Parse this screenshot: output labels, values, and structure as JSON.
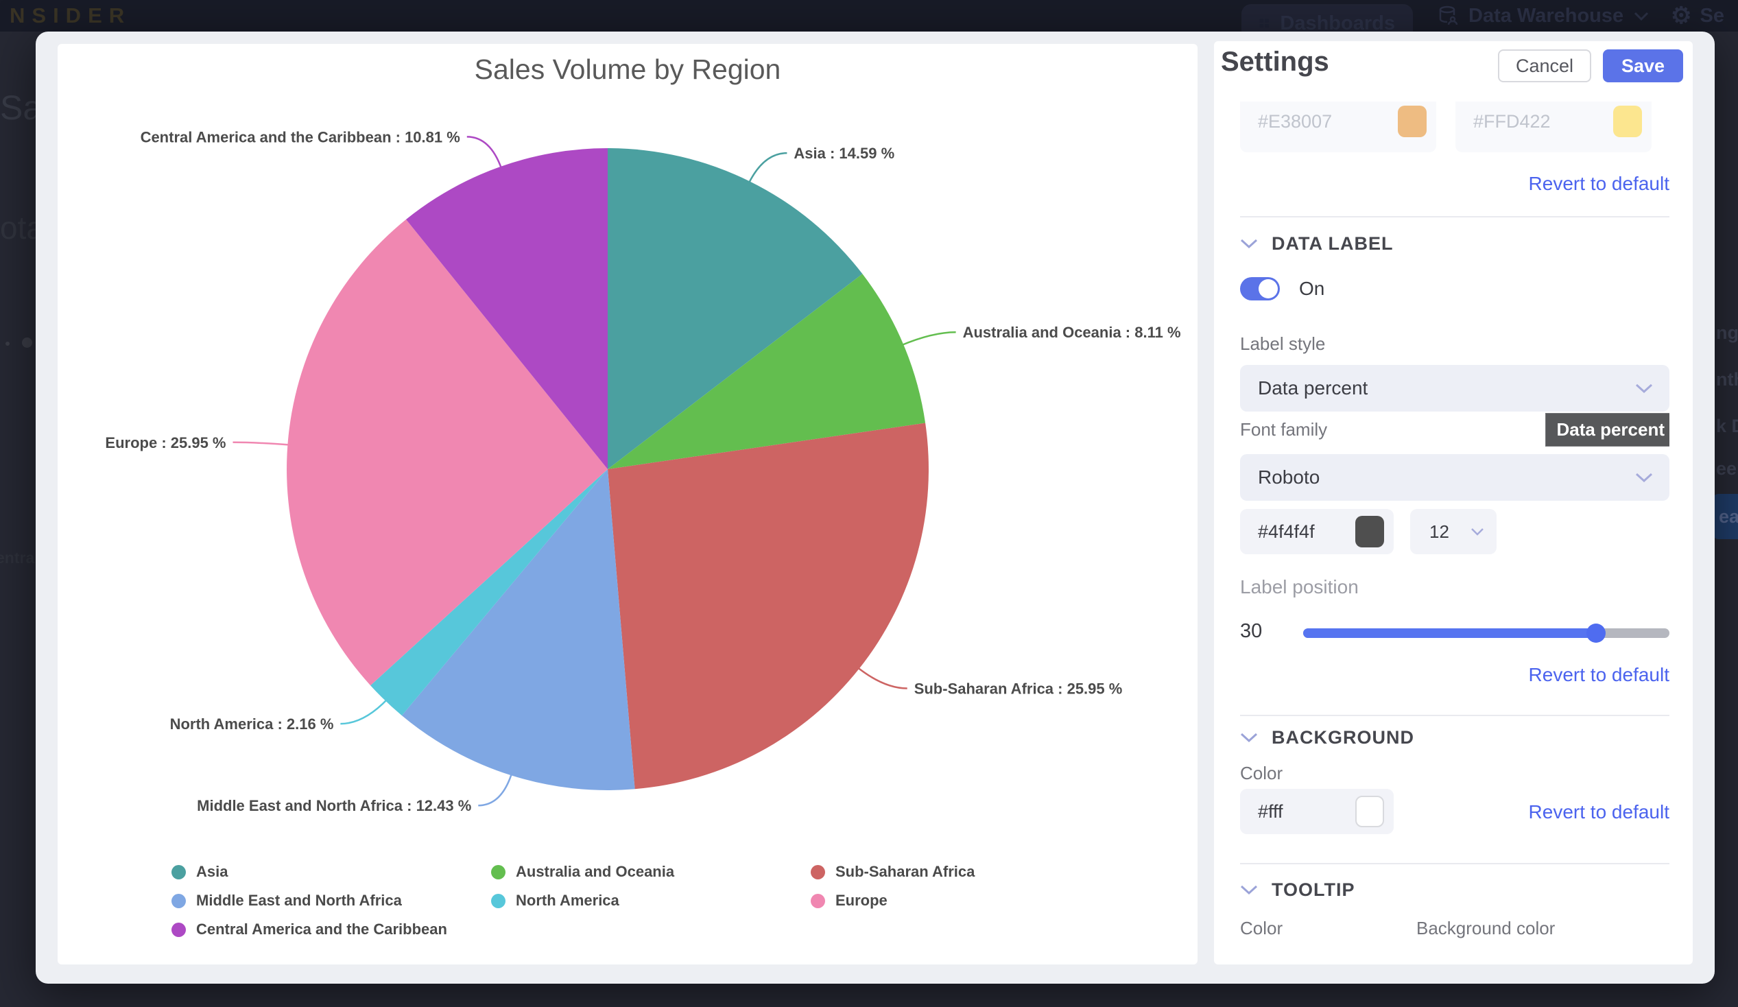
{
  "topbar": {
    "brand": "NSIDER",
    "nav": [
      {
        "label": "Dashboards"
      },
      {
        "label": "Data Warehouse"
      },
      {
        "label": "Se"
      }
    ]
  },
  "background_page": {
    "left_fragments": [
      "Sal",
      "ota",
      "entral"
    ],
    "right_fragments": [
      "nge",
      "nth",
      "k D",
      "eek",
      "ear"
    ]
  },
  "chart_data": {
    "type": "pie",
    "title": "Sales Volume by Region",
    "label_format": "{name} : {value} %",
    "legend_position": "bottom",
    "series": [
      {
        "name": "Asia",
        "value": 14.59,
        "color": "#4BA0A0"
      },
      {
        "name": "Australia and Oceania",
        "value": 8.11,
        "color": "#63BE4F"
      },
      {
        "name": "Sub-Saharan Africa",
        "value": 25.95,
        "color": "#CD6463"
      },
      {
        "name": "Middle East and North Africa",
        "value": 12.43,
        "color": "#7FA7E3"
      },
      {
        "name": "North America",
        "value": 2.16,
        "color": "#57C7DA"
      },
      {
        "name": "Europe",
        "value": 25.95,
        "color": "#F087B1"
      },
      {
        "name": "Central America and the Caribbean",
        "value": 10.81,
        "color": "#AD49C4"
      }
    ]
  },
  "settings": {
    "title": "Settings",
    "cancel_label": "Cancel",
    "save_label": "Save",
    "revert_label": "Revert to default",
    "top_color_inputs": [
      {
        "value": "#E38007"
      },
      {
        "value": "#FFD422"
      }
    ],
    "data_label": {
      "section_title": "DATA LABEL",
      "toggle_state": "On",
      "label_style_label": "Label style",
      "label_style_value": "Data percent",
      "dropdown_tooltip": "Data percent",
      "font_family_label": "Font family",
      "font_family_value": "Roboto",
      "font_color": "#4f4f4f",
      "font_size": "12",
      "label_position_label": "Label position",
      "label_position_value": "30",
      "slider_percent": 80
    },
    "background": {
      "section_title": "BACKGROUND",
      "color_label": "Color",
      "color_value": "#fff"
    },
    "tooltip": {
      "section_title": "TOOLTIP",
      "color_label": "Color",
      "background_color_label": "Background color"
    }
  }
}
